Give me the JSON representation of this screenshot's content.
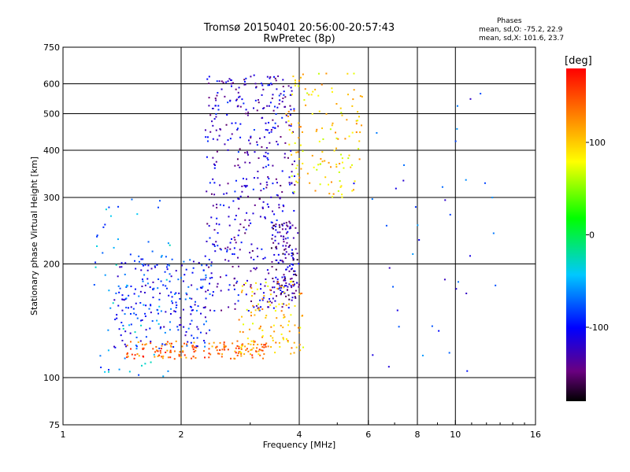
{
  "header": {
    "title_line1": "Tromsø 20150401 20:56:00-20:57:43",
    "title_line2": "RwPretec (8p)"
  },
  "stats": {
    "heading": "Phases",
    "o_line": "mean, sd,O: -75.2, 22.9",
    "x_line": "mean, sd,X: 101.6, 23.7"
  },
  "chart_data": {
    "type": "scatter",
    "title": "Tromsø 20150401 20:56:00-20:57:43",
    "subtitle": "RwPretec (8p)",
    "xlabel": "Frequency [MHz]",
    "ylabel": "Stationary phase Virtual Height [km]",
    "xscale": "log",
    "yscale": "log",
    "xlim": [
      1,
      16
    ],
    "ylim": [
      75,
      750
    ],
    "xticks": [
      1,
      2,
      4,
      6,
      8,
      10,
      16
    ],
    "xtick_labels": [
      "1",
      "2",
      "4",
      "6",
      "8",
      "10",
      "16"
    ],
    "yticks": [
      75,
      100,
      200,
      300,
      400,
      500,
      600,
      750
    ],
    "ytick_labels": [
      "75",
      "100",
      "200",
      "300",
      "400",
      "500",
      "600",
      "750"
    ],
    "grid": true,
    "colorbar": {
      "label": "[deg]",
      "range": [
        -180,
        180
      ],
      "ticks": [
        100,
        0,
        -100
      ],
      "tick_labels": [
        "100",
        "0",
        "-100"
      ],
      "colors": [
        "#000000",
        "#6a0080",
        "#0000ff",
        "#00c8ff",
        "#00ff00",
        "#ffff00",
        "#ff8000",
        "#ff0000"
      ]
    },
    "clusters": [
      {
        "name_hint": "low-band-orange",
        "x_range": [
          1.45,
          3.3
        ],
        "y_range": [
          112,
          125
        ],
        "phase": 140,
        "count": 160
      },
      {
        "name_hint": "cyan-lower-blob",
        "x_range": [
          1.35,
          2.4
        ],
        "y_range": [
          120,
          210
        ],
        "phase": -95,
        "count": 220
      },
      {
        "name_hint": "cyan-left-flank",
        "x_range": [
          1.2,
          1.9
        ],
        "y_range": [
          100,
          300
        ],
        "phase": -60,
        "count": 70
      },
      {
        "name_hint": "blue-mid-column",
        "x_range": [
          2.3,
          3.9
        ],
        "y_range": [
          150,
          640
        ],
        "phase": -120,
        "count": 480
      },
      {
        "name_hint": "blue-cusp",
        "x_range": [
          3.4,
          4.0
        ],
        "y_range": [
          160,
          260
        ],
        "phase": -135,
        "count": 120
      },
      {
        "name_hint": "yellow-upper",
        "x_range": [
          3.7,
          5.8
        ],
        "y_range": [
          300,
          640
        ],
        "phase": 95,
        "count": 140
      },
      {
        "name_hint": "yellow-lower-trace",
        "x_range": [
          2.8,
          4.1
        ],
        "y_range": [
          115,
          180
        ],
        "phase": 105,
        "count": 120
      },
      {
        "name_hint": "sparse-high-freq",
        "x_range": [
          5.5,
          13.0
        ],
        "y_range": [
          100,
          620
        ],
        "phase": -90,
        "count": 40
      }
    ]
  }
}
